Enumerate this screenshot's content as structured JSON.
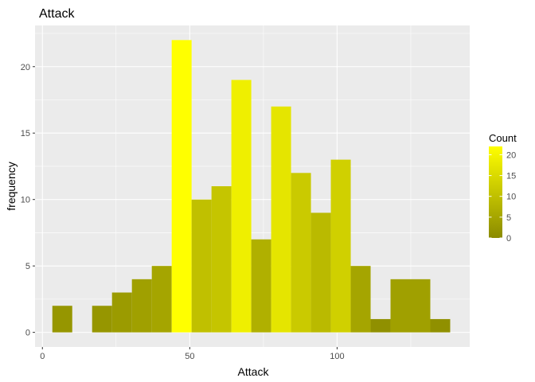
{
  "chart_data": {
    "type": "bar",
    "title": "Attack",
    "xlabel": "Attack",
    "ylabel": "frequency",
    "xlim": [
      -2.5,
      145
    ],
    "ylim": [
      -1.1,
      23.1
    ],
    "x_ticks": [
      0,
      50,
      100
    ],
    "y_ticks": [
      0,
      5,
      10,
      15,
      20
    ],
    "bin_width": 6.75,
    "bins": [
      {
        "x": 6.75,
        "count": 2
      },
      {
        "x": 20.25,
        "count": 2
      },
      {
        "x": 27,
        "count": 3
      },
      {
        "x": 33.75,
        "count": 4
      },
      {
        "x": 40.5,
        "count": 5
      },
      {
        "x": 47.25,
        "count": 22
      },
      {
        "x": 54,
        "count": 10
      },
      {
        "x": 60.75,
        "count": 11
      },
      {
        "x": 67.5,
        "count": 19
      },
      {
        "x": 74.25,
        "count": 7
      },
      {
        "x": 81,
        "count": 17
      },
      {
        "x": 87.75,
        "count": 12
      },
      {
        "x": 94.5,
        "count": 9
      },
      {
        "x": 101.25,
        "count": 13
      },
      {
        "x": 108,
        "count": 5
      },
      {
        "x": 114.75,
        "count": 1
      },
      {
        "x": 121.5,
        "count": 4
      },
      {
        "x": 128.25,
        "count": 4
      },
      {
        "x": 135,
        "count": 1
      }
    ],
    "fill_scale": {
      "low": "#8b8b00",
      "high": "#ffff00",
      "min": 0,
      "max": 22
    },
    "legend": {
      "title": "Count",
      "labels": [
        "0",
        "5",
        "10",
        "15",
        "20"
      ],
      "values": [
        0,
        5,
        10,
        15,
        20
      ],
      "placement": "right"
    },
    "panel_background": "#ebebeb",
    "grid": true
  }
}
